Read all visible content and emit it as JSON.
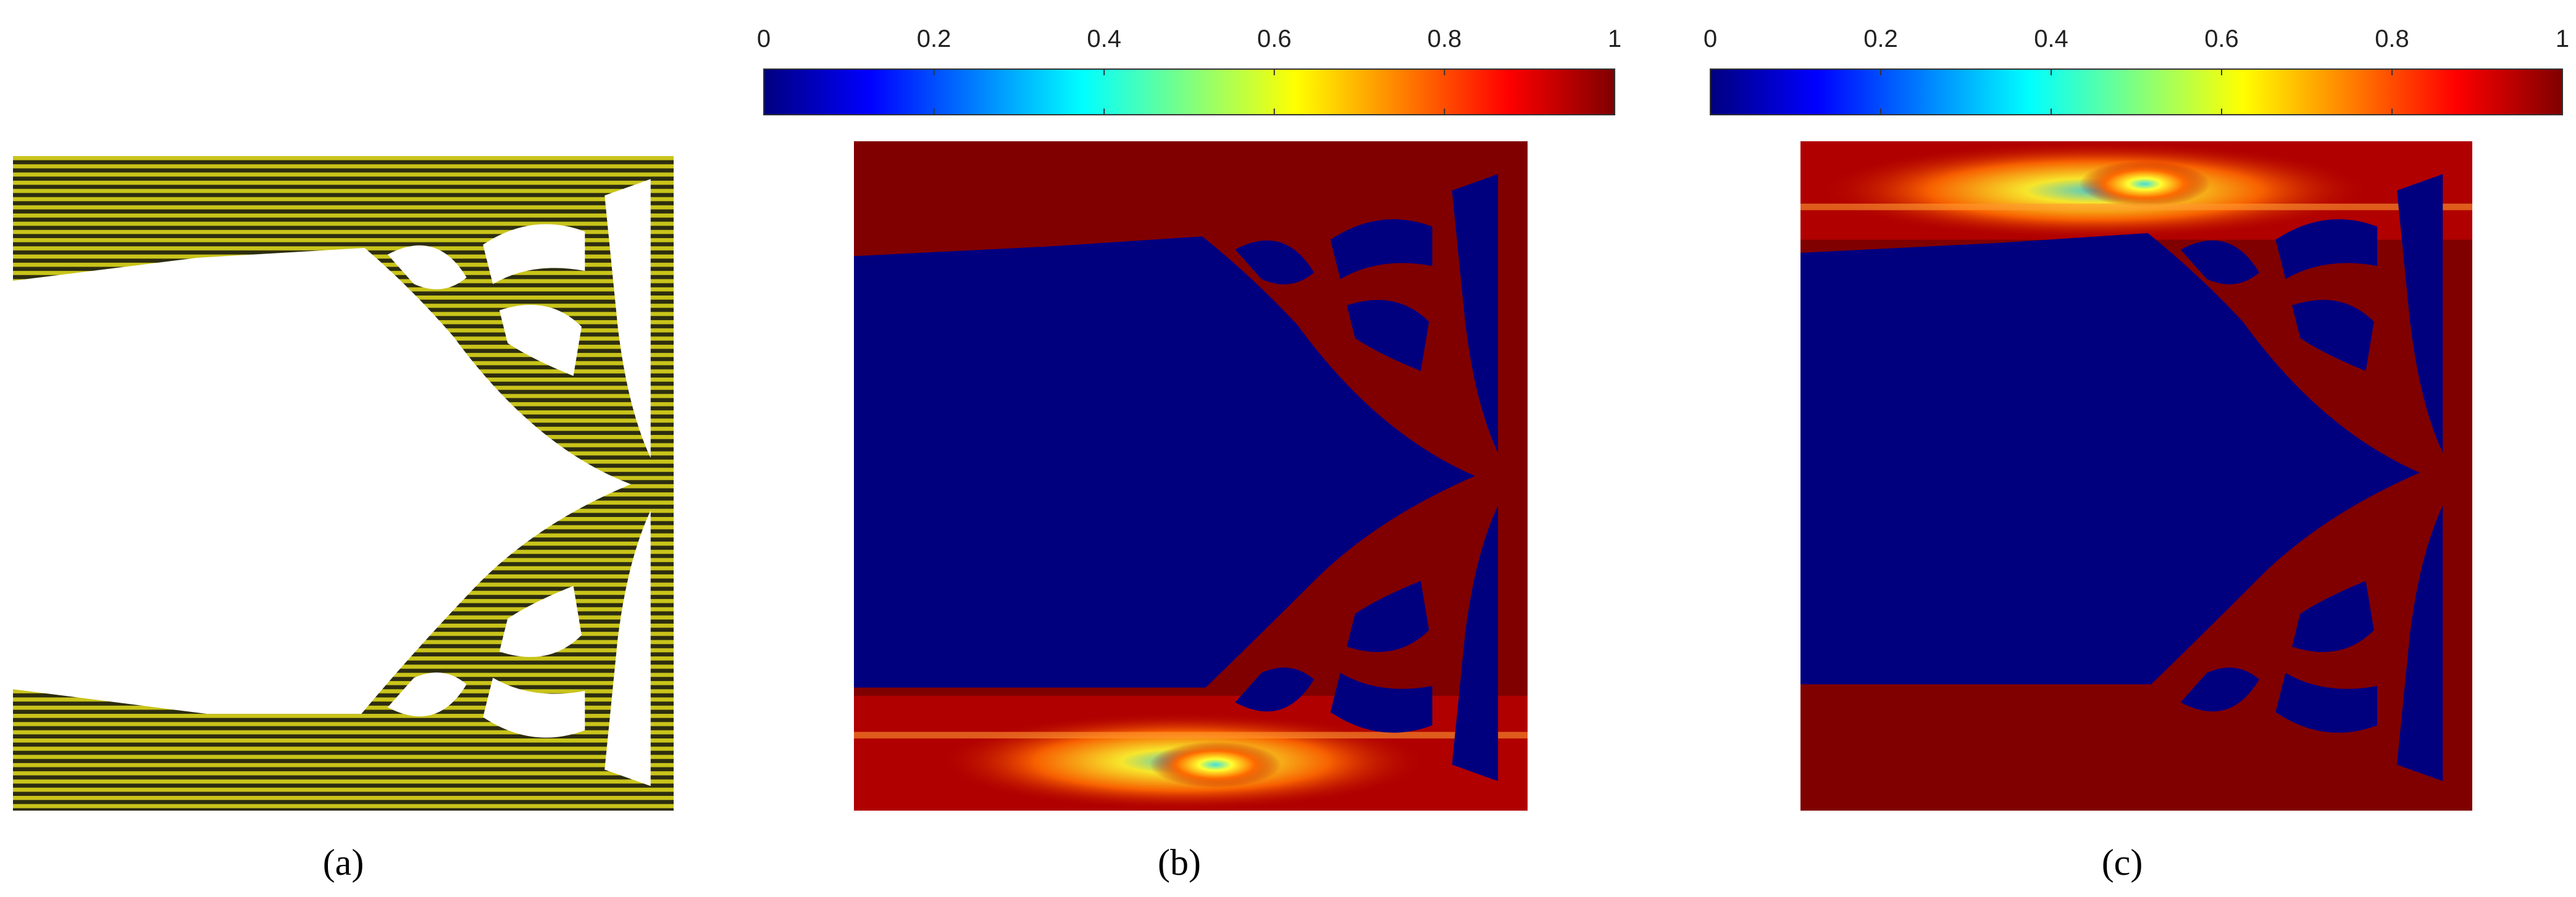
{
  "panels": [
    {
      "label": "(a)"
    },
    {
      "label": "(b)",
      "colorbar": {
        "limits": [
          0,
          1
        ],
        "ticks": [
          0,
          0.2,
          0.4,
          0.6,
          0.8,
          1
        ]
      }
    },
    {
      "label": "(c)",
      "colorbar": {
        "limits": [
          0,
          1
        ],
        "ticks": [
          0,
          0.2,
          0.4,
          0.6,
          0.8,
          1
        ]
      }
    }
  ]
}
